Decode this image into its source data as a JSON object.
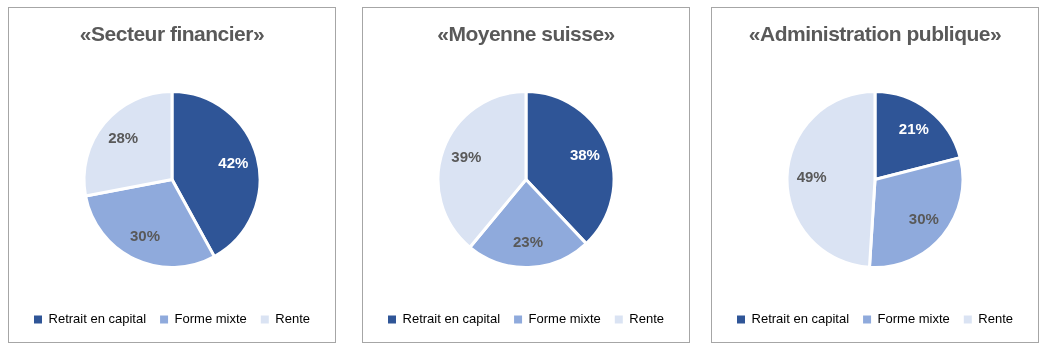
{
  "chart_data": [
    {
      "type": "pie",
      "title": "«Secteur financier»",
      "categories": [
        "Retrait en capital",
        "Forme mixte",
        "Rente"
      ],
      "values": [
        42,
        30,
        28
      ],
      "colors": [
        "#2f5597",
        "#8faadc",
        "#dae3f3"
      ],
      "value_labels": [
        "42%",
        "30%",
        "28%"
      ],
      "legend": "bottom"
    },
    {
      "type": "pie",
      "title": "«Moyenne suisse»",
      "categories": [
        "Retrait en capital",
        "Forme mixte",
        "Rente"
      ],
      "values": [
        38,
        23,
        39
      ],
      "colors": [
        "#2f5597",
        "#8faadc",
        "#dae3f3"
      ],
      "value_labels": [
        "38%",
        "23%",
        "39%"
      ],
      "legend": "bottom"
    },
    {
      "type": "pie",
      "title": "«Administration publique»",
      "categories": [
        "Retrait en capital",
        "Forme mixte",
        "Rente"
      ],
      "values": [
        21,
        30,
        49
      ],
      "colors": [
        "#2f5597",
        "#8faadc",
        "#dae3f3"
      ],
      "value_labels": [
        "21%",
        "30%",
        "49%"
      ],
      "legend": "bottom"
    }
  ]
}
